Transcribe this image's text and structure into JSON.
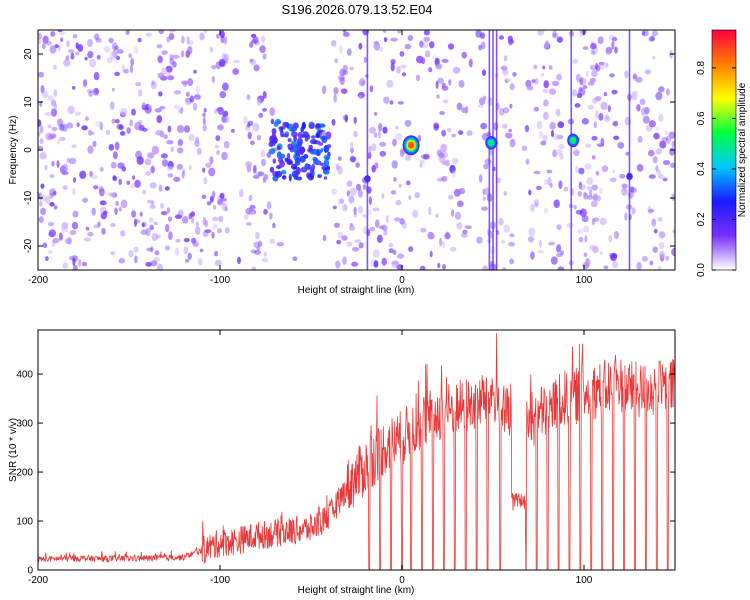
{
  "title": "S196.2026.079.13.52.E04",
  "chart_data": [
    {
      "type": "heatmap",
      "xlabel": "Height of straight line (km)",
      "ylabel": "Frequency (Hz)",
      "xlim": [
        -200,
        150
      ],
      "ylim": [
        -25,
        25
      ],
      "xticks": [
        -200,
        -100,
        0,
        100
      ],
      "yticks": [
        -20,
        -10,
        0,
        10,
        20
      ],
      "colorbar": {
        "label": "Normalized spectral amplitude",
        "range": [
          0,
          0.95
        ],
        "ticks": [
          0.0,
          0.2,
          0.4,
          0.6,
          0.8
        ],
        "colormap": [
          "#ffffff",
          "#7b2fff",
          "#1a1aff",
          "#00c8ff",
          "#00ff40",
          "#ffff00",
          "#ff7f00",
          "#ff0040"
        ]
      },
      "vertical_lines_km": [
        -19,
        48,
        50,
        52,
        93,
        125
      ],
      "hotspots": [
        {
          "x": 5,
          "y": 1,
          "amplitude": 0.85
        },
        {
          "x": 49,
          "y": 1.5,
          "amplitude": 0.55
        },
        {
          "x": 94,
          "y": 2,
          "amplitude": 0.5
        },
        {
          "x": -70,
          "y": 2,
          "amplitude": 0.3
        },
        {
          "x": -55,
          "y": 0,
          "amplitude": 0.25
        },
        {
          "x": -19,
          "y": -6,
          "amplitude": 0.3
        },
        {
          "x": 125,
          "y": -5.5,
          "amplitude": 0.25
        }
      ],
      "blank_bands_km": [
        [
          -70,
          -38
        ],
        [
          -95,
          -85
        ],
        [
          5,
          8
        ],
        [
          38,
          42
        ],
        [
          62,
          68
        ],
        [
          88,
          92
        ],
        [
          118,
          122
        ]
      ]
    },
    {
      "type": "line",
      "xlabel": "Height of straight line (km)",
      "ylabel": "SNR (10 * v/v)",
      "xlim": [
        -200,
        150
      ],
      "ylim": [
        0,
        490
      ],
      "xticks": [
        -200,
        -100,
        0,
        100
      ],
      "yticks": [
        0,
        100,
        200,
        300,
        400
      ],
      "color": "#e8393a",
      "x": [
        -200,
        -180,
        -160,
        -140,
        -120,
        -110,
        -100,
        -90,
        -80,
        -70,
        -60,
        -50,
        -40,
        -30,
        -20,
        -10,
        0,
        10,
        20,
        30,
        40,
        50,
        60,
        70,
        80,
        90,
        100,
        110,
        120,
        130,
        140,
        150
      ],
      "y": [
        22,
        24,
        23,
        24,
        26,
        40,
        55,
        60,
        70,
        75,
        80,
        85,
        110,
        170,
        210,
        250,
        270,
        300,
        320,
        330,
        340,
        360,
        300,
        300,
        330,
        350,
        360,
        370,
        380,
        365,
        370,
        375
      ],
      "dropouts_km": [
        -18,
        -12,
        -6,
        0,
        5,
        11,
        17,
        23,
        29,
        35,
        41,
        47,
        54,
        62,
        68,
        74,
        80,
        86,
        92,
        98,
        104,
        110,
        116,
        122,
        128,
        134,
        140,
        146
      ],
      "bump": {
        "x": [
          60,
          68
        ],
        "y": [
          120,
          160
        ]
      }
    }
  ]
}
